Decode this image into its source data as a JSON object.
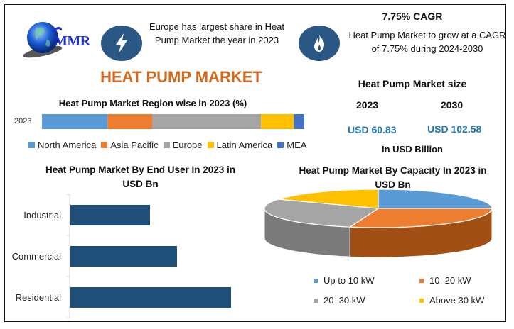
{
  "brand": {
    "logo_text": "MMR"
  },
  "header": {
    "title": "HEAT PUMP MARKET",
    "region_note": "Europe has largest share in Heat Pump Market the year in 2023",
    "cagr_title": "7.75% CAGR",
    "cagr_text": "Heat Pump Market to grow at a CAGR of 7.75% during 2024-2030",
    "icons": [
      "lightning-bolt-icon",
      "flame-icon"
    ]
  },
  "market_size": {
    "title": "Heat Pump Market size",
    "years": [
      {
        "year": "2023",
        "value": "USD 60.83"
      },
      {
        "year": "2030",
        "value": "USD 102.58"
      }
    ],
    "unit": "In USD Billion"
  },
  "colors": {
    "accent_orange": "#d2691e",
    "value_blue": "#1f77b4",
    "icon_blue": "#2a5783",
    "bar_navy": "#1f4e79"
  },
  "chart_data": [
    {
      "type": "bar",
      "orientation": "horizontal-stacked",
      "title": "Heat Pump Market Region wise in 2023 (%)",
      "categories": [
        "2023"
      ],
      "series": [
        {
          "name": "North America",
          "values": [
            25
          ],
          "color": "#5b9bd5"
        },
        {
          "name": "Asia Pacific",
          "values": [
            17
          ],
          "color": "#ed7d31"
        },
        {
          "name": "Europe",
          "values": [
            41.5
          ],
          "color": "#a5a5a5"
        },
        {
          "name": "Latin America",
          "values": [
            12.5
          ],
          "color": "#ffc000"
        },
        {
          "name": "MEA",
          "values": [
            4
          ],
          "color": "#4472c4"
        }
      ],
      "legend": "bottom",
      "xlabel": "",
      "ylabel": "",
      "grid": false
    },
    {
      "type": "bar",
      "orientation": "horizontal",
      "title": "Heat Pump Market By End User In 2023 in USD Bn",
      "categories": [
        "Industrial",
        "Commercial",
        "Residential"
      ],
      "values": [
        11.2,
        15.0,
        22.6
      ],
      "color": "#1f4e79",
      "xlabel": "",
      "ylabel": "",
      "grid": false,
      "xlim": [
        0,
        25
      ]
    },
    {
      "type": "pie",
      "style": "3d",
      "title": "Heat Pump Market By Capacity In 2023 in USD Bn",
      "labels": [
        "Up to 10 kW",
        "10–20 kW",
        "20–30 kW",
        "Above 30 kW"
      ],
      "values": [
        25,
        29,
        29,
        17
      ],
      "colors": [
        "#5b9bd5",
        "#ed7d31",
        "#a5a5a5",
        "#ffc000"
      ],
      "side_colors": [
        "#3f75a8",
        "#a24f16",
        "#7a7a7a",
        "#c99400"
      ],
      "legend": "bottom"
    }
  ]
}
